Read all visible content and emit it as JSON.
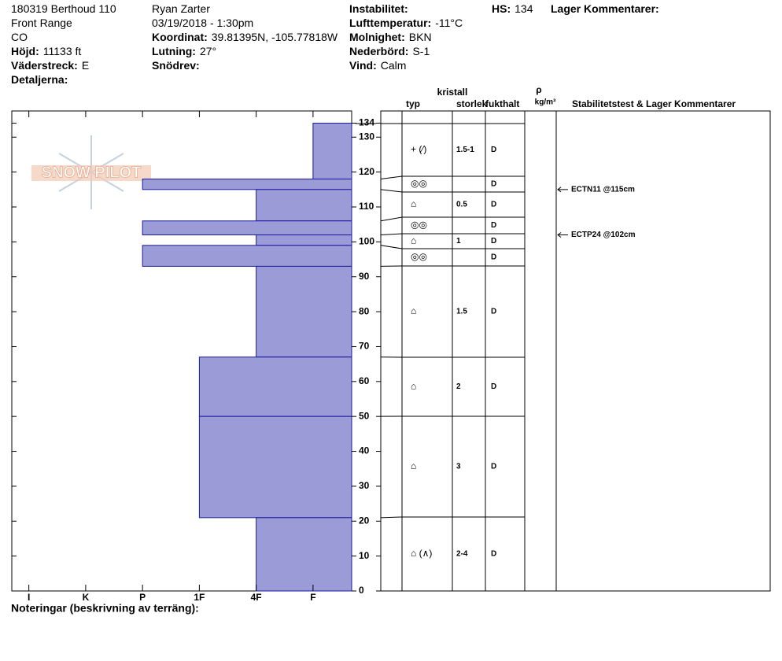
{
  "header": {
    "fields": [
      {
        "value": "180319 Berthoud 110"
      },
      {
        "value": "Front Range"
      },
      {
        "value": "CO"
      },
      {
        "label": "Höjd:",
        "value": "11133 ft"
      },
      {
        "label": "Väderstreck:",
        "value": "E"
      },
      {
        "label": "Detaljerna:"
      },
      {
        "value": "Ryan Zarter"
      },
      {
        "value": "03/19/2018 - 1:30pm"
      },
      {
        "label": "Koordinat:",
        "value": "39.81395N, -105.77818W"
      },
      {
        "label": "Lutning:",
        "value": "27°"
      },
      {
        "label": "Snödrev:"
      },
      {
        "label": "Instabilitet:"
      },
      {
        "label": "Lufttemperatur:",
        "value": "-11°C"
      },
      {
        "label": "Molnighet:",
        "value": "BKN"
      },
      {
        "label": "Nederbörd:",
        "value": "S-1"
      },
      {
        "label": "Vind:",
        "value": "Calm"
      },
      {
        "label": "HS:",
        "value": "134"
      },
      {
        "label": "Lager Kommentarer:"
      }
    ]
  },
  "watermark": "SNOW PILOT",
  "chart_data": {
    "type": "bar",
    "orientation": "horizontal",
    "color": "#9b9bd8",
    "edge_color": "#1a1aa0",
    "values": [
      1,
      4,
      2,
      4,
      2,
      4,
      2,
      3,
      3,
      2
    ],
    "tops": [
      134,
      118,
      115,
      106,
      102,
      99,
      93,
      67,
      50,
      21
    ],
    "bottoms": [
      118,
      115,
      106,
      102,
      99,
      93,
      67,
      50,
      21,
      0
    ],
    "xlim": [
      6.3,
      0.32
    ],
    "xticks": [
      {
        "value": 6,
        "label": "I"
      },
      {
        "value": 5,
        "label": "K"
      },
      {
        "value": 4,
        "label": "P"
      },
      {
        "value": 3,
        "label": "1F"
      },
      {
        "value": 2,
        "label": "4F"
      },
      {
        "value": 1,
        "label": "F"
      }
    ],
    "ylim": [
      0,
      137.5
    ],
    "yticks": [
      0,
      10,
      20,
      30,
      40,
      50,
      60,
      70,
      80,
      90,
      100,
      110,
      120,
      130,
      134
    ]
  },
  "table_headers": {
    "crystal": "kristall",
    "type": "typ",
    "size": "storlek",
    "moisture": "fukthalt",
    "density": "ρ",
    "density_unit": "kg/m³",
    "comments": "Stabilitetstest & Lager Kommentarer"
  },
  "layers": [
    {
      "grain": "+ (⁄)",
      "size": "1.5-1",
      "moisture": "D"
    },
    {
      "grain": "◎◎",
      "moisture": "D"
    },
    {
      "grain": "⌂",
      "size": "0.5",
      "moisture": "D"
    },
    {
      "grain": "◎◎",
      "moisture": "D"
    },
    {
      "grain": "⌂",
      "size": "1",
      "moisture": "D"
    },
    {
      "grain": "◎◎",
      "moisture": "D"
    },
    {
      "grain": "⌂",
      "size": "1.5",
      "moisture": "D"
    },
    {
      "grain": "⌂",
      "size": "2",
      "moisture": "D"
    },
    {
      "grain": "⌂",
      "size": "3",
      "moisture": "D"
    },
    {
      "grain": "⌂ (∧)",
      "size": "2-4",
      "moisture": "D"
    }
  ],
  "comments": [
    {
      "text": "ECTN11 @115cm",
      "depth": 115
    },
    {
      "text": "ECTP24 @102cm",
      "depth": 102
    }
  ],
  "notes": "Noteringar (beskrivning av terräng):"
}
